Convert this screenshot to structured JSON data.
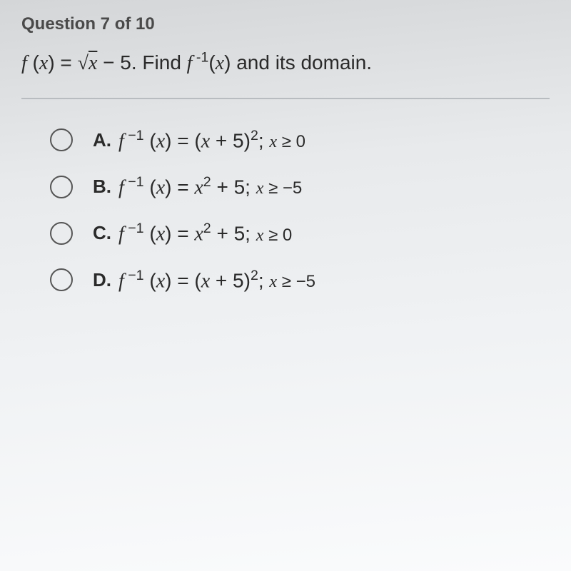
{
  "header": "Question 7 of 10",
  "prompt": {
    "func_def_html": "<span class='math-i'>f</span> (<span class='math-i'>x</span>) = <span class='sqrt-sym'>√<span class='overline'><span class='math-i'>x</span></span></span> − 5.",
    "tail_html": " Find <span class='math-i'>f</span><span class='sup'> -1</span>(<span class='math-i'>x</span>) and its domain."
  },
  "options": [
    {
      "letter": "A.",
      "expr_html": "<span class='math-i'>f</span><span class='sup'> −1</span> (<span class='math-i'>x</span>) = (<span class='math-i'>x</span> + 5)<span class='sup'>2</span>; <span class='semicond'><span class='math-i'>x</span> ≥ 0</span>"
    },
    {
      "letter": "B.",
      "expr_html": "<span class='math-i'>f</span><span class='sup'> −1</span> (<span class='math-i'>x</span>) = <span class='math-i'>x</span><span class='sup'>2</span> + 5; <span class='semicond'><span class='math-i'>x</span> ≥ −5</span>"
    },
    {
      "letter": "C.",
      "expr_html": "<span class='math-i'>f</span><span class='sup'> −1</span> (<span class='math-i'>x</span>) = <span class='math-i'>x</span><span class='sup'>2</span> + 5; <span class='semicond'><span class='math-i'>x</span> ≥ 0</span>"
    },
    {
      "letter": "D.",
      "expr_html": "<span class='math-i'>f</span><span class='sup'> −1</span> (<span class='math-i'>x</span>) = (<span class='math-i'>x</span> + 5)<span class='sup'>2</span>; <span class='semicond'><span class='math-i'>x</span> ≥ −5</span>"
    }
  ],
  "style": {
    "text_color": "#3a3a3a",
    "header_color": "#4a4a4a",
    "divider_color": "#b8bcc0",
    "radio_border": "#555",
    "header_fontsize": 24,
    "prompt_fontsize": 28,
    "option_fontsize": 28
  }
}
